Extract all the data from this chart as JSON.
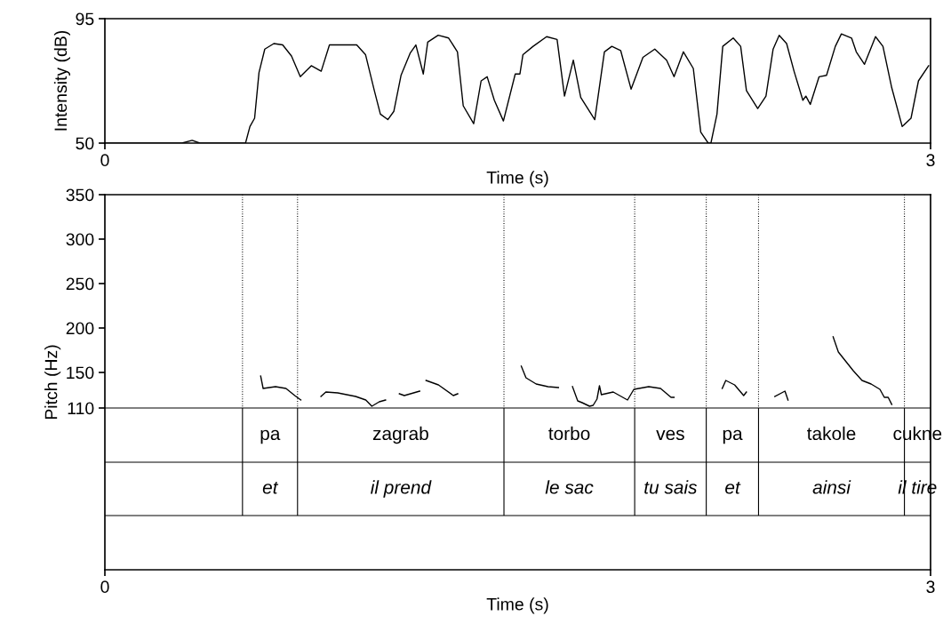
{
  "chart_data": [
    {
      "type": "line",
      "ylabel": "Intensity (dB)",
      "xlabel": "Time (s)",
      "xlim": [
        0,
        3
      ],
      "xticks": [
        0,
        3
      ],
      "ylim": [
        50,
        95
      ],
      "yticks": [
        50,
        95
      ],
      "marker": "none",
      "line_style": "solid",
      "series": [
        {
          "color": "#000000",
          "x": [
            0,
            0.28,
            0.317,
            0.345,
            0.511,
            0.527,
            0.544,
            0.56,
            0.581,
            0.614,
            0.646,
            0.678,
            0.71,
            0.75,
            0.786,
            0.816,
            0.861,
            0.915,
            0.947,
            0.979,
            1.001,
            1.028,
            1.05,
            1.076,
            1.109,
            1.13,
            1.157,
            1.173,
            1.211,
            1.249,
            1.281,
            1.302,
            1.34,
            1.367,
            1.389,
            1.415,
            1.448,
            1.491,
            1.508,
            1.519,
            1.556,
            1.605,
            1.643,
            1.67,
            1.702,
            1.729,
            1.78,
            1.815,
            1.842,
            1.874,
            1.912,
            1.955,
            1.998,
            2.041,
            2.068,
            2.102,
            2.138,
            2.165,
            2.192,
            2.202,
            2.224,
            2.245,
            2.283,
            2.31,
            2.331,
            2.372,
            2.402,
            2.428,
            2.45,
            2.477,
            2.504,
            2.536,
            2.547,
            2.563,
            2.595,
            2.622,
            2.654,
            2.676,
            2.713,
            2.73,
            2.76,
            2.8,
            2.827,
            2.859,
            2.897,
            2.929,
            2.956,
            2.993
          ],
          "values": [
            50,
            50,
            51,
            50,
            50,
            56,
            59,
            75.5,
            84,
            86,
            85.5,
            81.5,
            74,
            78,
            76,
            85.5,
            85.5,
            85.5,
            82,
            69,
            60.5,
            58.5,
            61.5,
            74.5,
            82.5,
            85.5,
            75,
            86.5,
            89,
            88,
            83,
            63.5,
            57,
            72.5,
            74,
            65.5,
            58,
            75,
            75,
            82,
            85,
            88.5,
            87.5,
            67,
            80,
            66.5,
            58.5,
            83,
            85,
            83.5,
            69.5,
            81,
            84,
            80,
            74,
            83,
            77,
            54,
            50,
            50,
            60.5,
            85,
            88,
            85,
            69,
            62.5,
            67,
            84,
            89,
            86,
            76,
            65.5,
            67,
            64,
            74,
            74.5,
            85,
            89.5,
            88,
            83,
            78.5,
            88.5,
            85,
            70,
            56,
            59,
            72.5,
            78
          ]
        }
      ]
    },
    {
      "type": "line",
      "ylabel": "Pitch (Hz)",
      "xlabel": "Time (s)",
      "xlim": [
        0,
        3
      ],
      "xticks": [
        0,
        3
      ],
      "ylim": [
        -72,
        350
      ],
      "yticks": [
        110,
        150,
        200,
        250,
        300,
        350
      ],
      "marker": "none",
      "line_style": "solid",
      "ref_lines": [
        {
          "axis": "y",
          "value": 110,
          "color": "#000000",
          "line_style": "solid"
        },
        {
          "axis": "y",
          "value": 49,
          "color": "#000000",
          "line_style": "solid"
        },
        {
          "axis": "y",
          "value": -11,
          "color": "#000000",
          "line_style": "solid"
        },
        {
          "axis": "x",
          "value": 0.5,
          "color": "#000000",
          "line_style": "dotted"
        },
        {
          "axis": "x",
          "value": 0.7,
          "color": "#000000",
          "line_style": "dotted"
        },
        {
          "axis": "x",
          "value": 1.45,
          "color": "#000000",
          "line_style": "dotted"
        },
        {
          "axis": "x",
          "value": 1.925,
          "color": "#000000",
          "line_style": "dotted"
        },
        {
          "axis": "x",
          "value": 2.185,
          "color": "#000000",
          "line_style": "dotted"
        },
        {
          "axis": "x",
          "value": 2.375,
          "color": "#000000",
          "line_style": "dotted"
        },
        {
          "axis": "x",
          "value": 2.905,
          "color": "#000000",
          "line_style": "dotted"
        }
      ],
      "series": [
        {
          "color": "#000000",
          "x": [
            0.566,
            0.575,
            0.62,
            0.658,
            0.69,
            0.712,
            0.75,
            0.785,
            0.803,
            0.846,
            0.911,
            0.948,
            0.97,
            0.997,
            1.02,
            1.045,
            1.07,
            1.088,
            1.144,
            1.155,
            1.167,
            1.212,
            1.266,
            1.282,
            1.4,
            1.513,
            1.53,
            1.567,
            1.61,
            1.648,
            1.67,
            1.699,
            1.718,
            1.734,
            1.761,
            1.774,
            1.788,
            1.797,
            1.804,
            1.847,
            1.899,
            1.922,
            1.976,
            2.019,
            2.057,
            2.068,
            2.15,
            2.243,
            2.256,
            2.288,
            2.321,
            2.331,
            2.38,
            2.434,
            2.471,
            2.482,
            2.56,
            2.646,
            2.665,
            2.719,
            2.751,
            2.784,
            2.816,
            2.832,
            2.846,
            2.859
          ],
          "values": [
            146,
            132,
            134,
            132,
            124,
            119,
            null,
            123,
            128,
            127,
            123,
            119,
            112,
            117,
            119,
            null,
            126,
            124,
            129,
            null,
            141,
            136,
            124,
            126,
            null,
            157,
            144,
            137,
            134,
            133,
            null,
            134,
            118,
            116,
            112,
            113,
            120,
            135,
            125,
            128,
            119,
            131,
            134,
            132,
            122,
            122,
            null,
            132,
            141,
            136,
            124,
            128,
            null,
            123,
            129,
            119,
            null,
            190,
            173,
            152,
            141,
            137,
            131,
            122,
            122,
            114
          ]
        }
      ]
    },
    {
      "type": "other",
      "annotations": [
        "pa",
        "zagrab",
        "torbo",
        "ves",
        "pa",
        "takole",
        "cukne",
        "et",
        "il prend",
        "le sac",
        "tu sais",
        "et",
        "ainsi",
        "il tire"
      ]
    }
  ]
}
